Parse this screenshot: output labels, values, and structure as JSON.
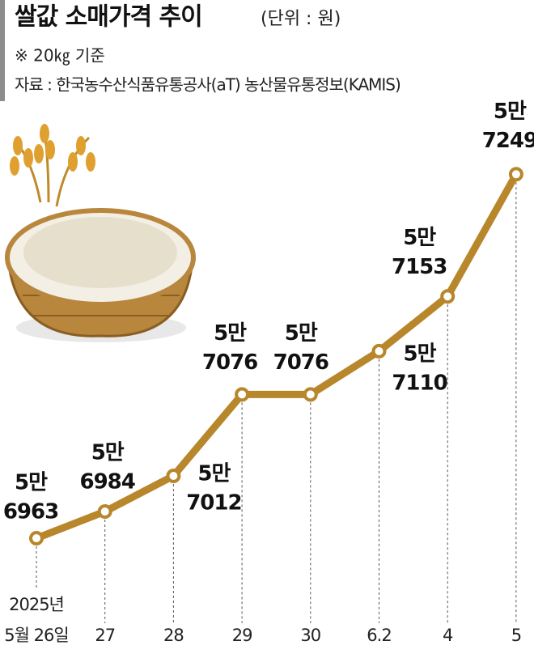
{
  "chart_data": {
    "type": "line",
    "title": "쌀값 소매가격 추이",
    "unit": "(단위 : 원)",
    "subtitle": "※ 20㎏ 기준",
    "source": "자료 : 한국농수산식품유통공사(aT) 농산물유통정보(KAMIS)",
    "year": "2025년",
    "categories": [
      "5월 26일",
      "27",
      "28",
      "29",
      "30",
      "6.2",
      "4",
      "5"
    ],
    "values": [
      56963,
      56984,
      57012,
      57076,
      57076,
      57110,
      57153,
      57249
    ],
    "value_labels": [
      [
        "5만",
        "6963"
      ],
      [
        "5만",
        "6984"
      ],
      [
        "5만",
        "7012"
      ],
      [
        "5만",
        "7076"
      ],
      [
        "5만",
        "7076"
      ],
      [
        "5만",
        "7110"
      ],
      [
        "5만",
        "7153"
      ],
      [
        "5만",
        "7249"
      ]
    ],
    "color": "#b8862b",
    "ylim": [
      56950,
      57260
    ]
  }
}
